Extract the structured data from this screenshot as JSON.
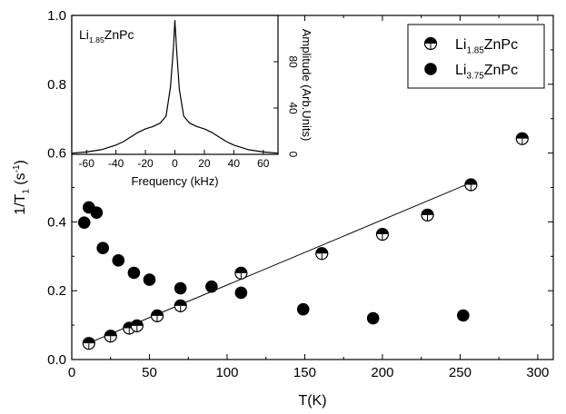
{
  "chart_data": [
    {
      "type": "scatter",
      "xlabel": "T(K)",
      "ylabel": {
        "base": "1/T",
        "sub": "1",
        "mid": " (s",
        "sup": "-1",
        "end": ")"
      },
      "xlim": [
        0,
        310
      ],
      "ylim": [
        0,
        1.0
      ],
      "xticks": [
        0,
        50,
        100,
        150,
        200,
        250,
        300
      ],
      "xtick_labels": [
        "0",
        "50",
        "100",
        "150",
        "200",
        "250",
        "300"
      ],
      "yticks": [
        0.0,
        0.2,
        0.4,
        0.6,
        0.8,
        1.0
      ],
      "ytick_labels": [
        "0.0",
        "0.2",
        "0.4",
        "0.6",
        "0.8",
        "1.0"
      ],
      "legend_position": "top-right",
      "series": [
        {
          "name": {
            "base": "Li",
            "sub": "1.85",
            "rest": "ZnPc"
          },
          "marker": "half-filled-circle",
          "x": [
            11,
            25,
            37,
            42,
            55,
            70,
            109,
            161,
            200,
            229,
            257,
            290
          ],
          "y": [
            0.047,
            0.068,
            0.091,
            0.098,
            0.127,
            0.156,
            0.251,
            0.308,
            0.364,
            0.42,
            0.508,
            0.642
          ]
        },
        {
          "name": {
            "base": "Li",
            "sub": "3.75",
            "rest": "ZnPc"
          },
          "marker": "filled-circle",
          "x": [
            8,
            11,
            16,
            20,
            30,
            40,
            50,
            70,
            90,
            109,
            149,
            194,
            252
          ],
          "y": [
            0.398,
            0.442,
            0.427,
            0.324,
            0.288,
            0.252,
            0.232,
            0.207,
            0.212,
            0.194,
            0.146,
            0.12,
            0.128
          ]
        }
      ],
      "fit_line": {
        "x": [
          10,
          257
        ],
        "y": [
          0.046,
          0.514
        ]
      }
    },
    {
      "type": "line",
      "label": {
        "base": "Li",
        "sub": "1.85",
        "rest": "ZnPc"
      },
      "xlabel": "Frequency (kHz)",
      "ylabel": "Amplitude (Arb.Units)",
      "xlim": [
        -70,
        70
      ],
      "ylim": [
        0,
        120
      ],
      "xticks": [
        -60,
        -40,
        -20,
        0,
        20,
        40,
        60
      ],
      "xtick_labels": [
        "-60",
        "-40",
        "-20",
        "0",
        "20",
        "40",
        "60"
      ],
      "yticks": [
        0,
        40,
        80
      ],
      "ytick_labels": [
        "0",
        "40",
        "80"
      ],
      "x": [
        -70,
        -60,
        -50,
        -40,
        -35,
        -30,
        -25,
        -20,
        -15,
        -10,
        -6,
        -3,
        -1,
        0,
        1,
        3,
        6,
        10,
        15,
        20,
        25,
        30,
        35,
        40,
        50,
        60,
        70
      ],
      "y": [
        1,
        2,
        4,
        8,
        11,
        15,
        19,
        22,
        24,
        27,
        33,
        58,
        92,
        116,
        94,
        56,
        33,
        27,
        24,
        22,
        19,
        15,
        11,
        8,
        4,
        2,
        1
      ]
    }
  ]
}
